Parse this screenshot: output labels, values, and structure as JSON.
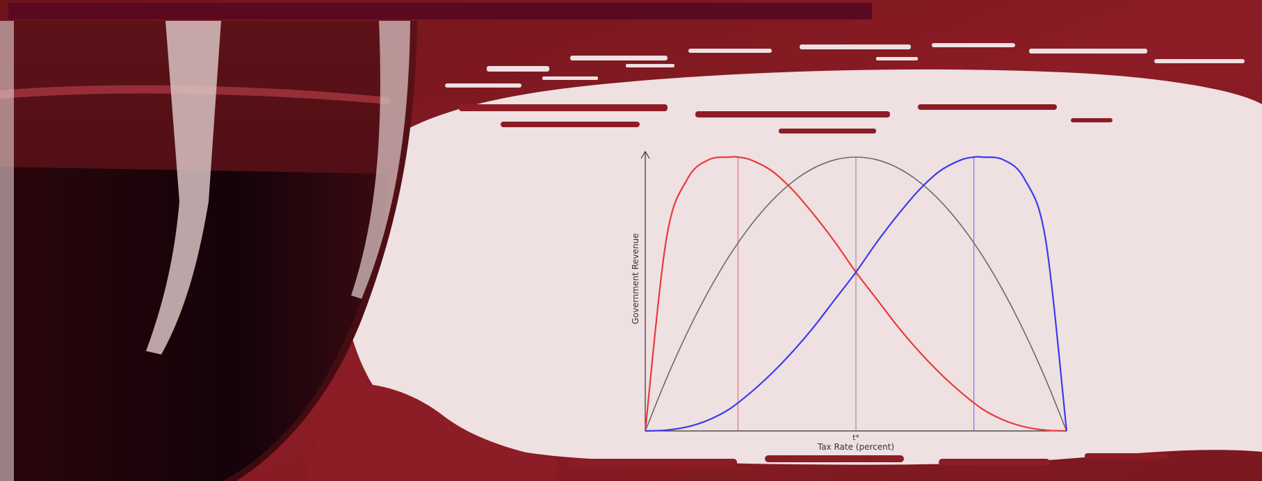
{
  "colors": {
    "banner_red": "#8a1a24",
    "paper": "#efe0e2",
    "top_bar": "#5a0a20",
    "wine": "#1a0408",
    "curve_red": "#e83a3a",
    "curve_gray": "#6a6a6a",
    "curve_blue": "#3a3aee"
  },
  "chart_data": {
    "type": "line",
    "xlabel": "Tax Rate (percent)",
    "ylabel": "Government Revenue",
    "xticks": [
      {
        "x": 50,
        "label": "t*"
      }
    ],
    "xlim": [
      0,
      100
    ],
    "ylim": [
      0,
      1
    ],
    "grid": false,
    "legend": "none",
    "series": [
      {
        "color": "#e83a3a",
        "x": [
          0,
          5,
          10,
          15,
          20,
          22,
          25,
          30,
          35,
          40,
          45,
          50,
          55,
          60,
          65,
          70,
          75,
          80,
          85,
          90,
          95,
          100
        ],
        "y": [
          0,
          0.7,
          0.92,
          0.99,
          1.0,
          1.0,
          0.99,
          0.95,
          0.88,
          0.79,
          0.69,
          0.58,
          0.48,
          0.38,
          0.29,
          0.21,
          0.14,
          0.08,
          0.04,
          0.015,
          0.003,
          0
        ]
      },
      {
        "color": "#6a6a6a",
        "x": [
          0,
          5,
          10,
          15,
          20,
          25,
          30,
          35,
          40,
          45,
          50,
          55,
          60,
          65,
          70,
          75,
          80,
          85,
          90,
          95,
          100
        ],
        "y": [
          0,
          0.19,
          0.36,
          0.51,
          0.64,
          0.75,
          0.84,
          0.91,
          0.96,
          0.99,
          1.0,
          0.99,
          0.96,
          0.91,
          0.84,
          0.75,
          0.64,
          0.51,
          0.36,
          0.19,
          0
        ]
      },
      {
        "color": "#3a3aee",
        "x": [
          0,
          5,
          10,
          15,
          20,
          25,
          30,
          35,
          40,
          45,
          50,
          55,
          60,
          65,
          70,
          75,
          78,
          80,
          85,
          90,
          95,
          100
        ],
        "y": [
          0,
          0.003,
          0.015,
          0.04,
          0.08,
          0.14,
          0.21,
          0.29,
          0.38,
          0.48,
          0.58,
          0.69,
          0.79,
          0.88,
          0.95,
          0.99,
          1.0,
          1.0,
          0.99,
          0.92,
          0.7,
          0
        ]
      }
    ],
    "vlines": [
      {
        "x": 22,
        "color": "#e83a3a"
      },
      {
        "x": 50,
        "color": "#6a6a6a"
      },
      {
        "x": 78,
        "color": "#3a3aee"
      }
    ]
  }
}
